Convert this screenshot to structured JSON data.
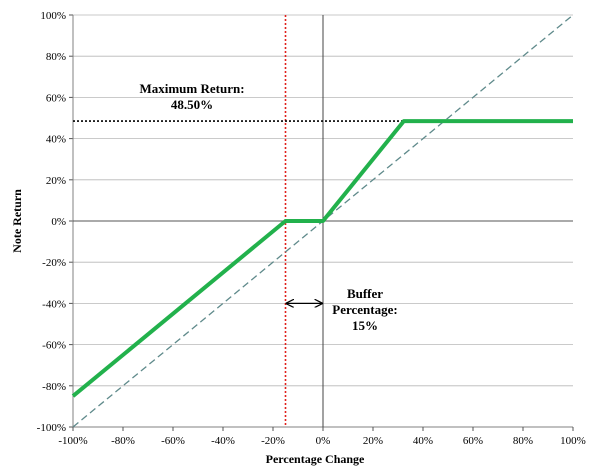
{
  "chart_data": {
    "type": "line",
    "title": "",
    "xlabel": "Percentage Change",
    "ylabel": "Note Return",
    "xlim": [
      -100,
      100
    ],
    "ylim": [
      -100,
      100
    ],
    "x_ticks": [
      "-100%",
      "-80%",
      "-60%",
      "-40%",
      "-20%",
      "0%",
      "20%",
      "40%",
      "60%",
      "80%",
      "100%"
    ],
    "y_ticks": [
      "100%",
      "80%",
      "60%",
      "40%",
      "20%",
      "0%",
      "-20%",
      "-40%",
      "-60%",
      "-80%",
      "-100%"
    ],
    "grid": "horizontal",
    "series": [
      {
        "color": "#22b14c",
        "style": "solid-thick",
        "x": [
          -100,
          -15,
          0,
          32.33,
          100
        ],
        "y": [
          -85,
          0,
          0,
          48.5,
          48.5
        ]
      },
      {
        "color": "#5f8a8b",
        "style": "dashed",
        "x": [
          -100,
          100
        ],
        "y": [
          -100,
          100
        ]
      }
    ],
    "reference_lines": {
      "buffer_x": -15,
      "buffer_color": "#e0211d",
      "max_return_y": 48.5,
      "zero_x": 0
    },
    "annotations": {
      "max_return_label": "Maximum Return:",
      "max_return_value": "48.50%",
      "buffer_line1": "Buffer",
      "buffer_line2": "Percentage:",
      "buffer_value": "15%"
    }
  }
}
